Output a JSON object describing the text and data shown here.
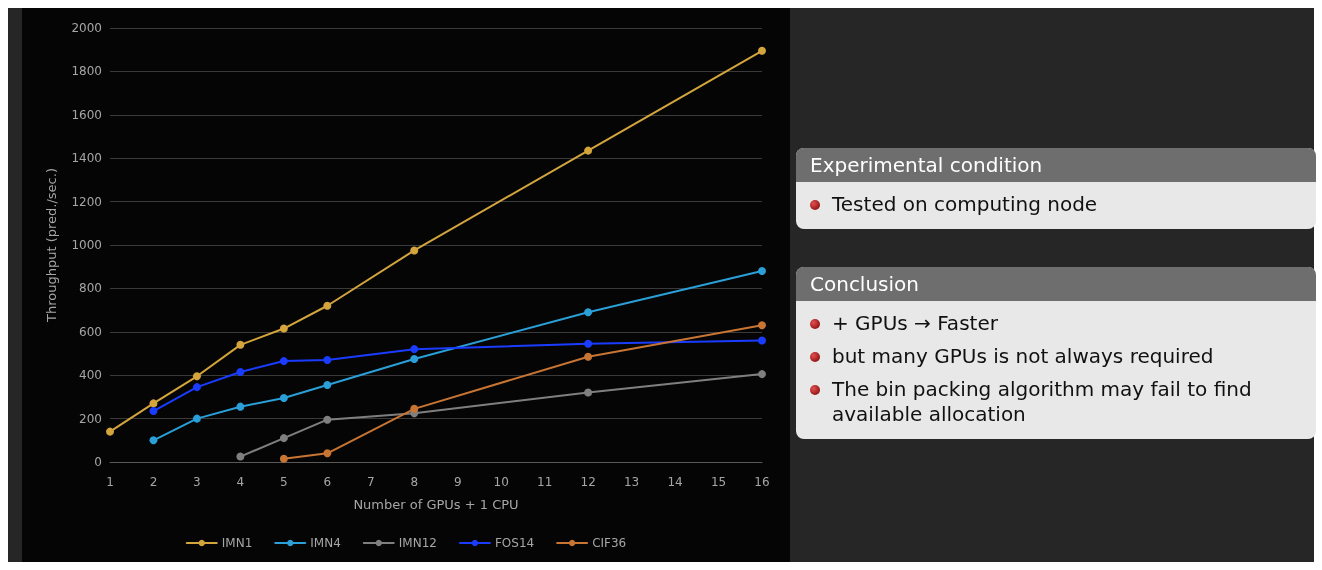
{
  "chart_data": [
    {
      "type": "line",
      "xlabel": "Number of GPUs + 1 CPU",
      "ylabel": "Throughput (pred./sec.)",
      "xlim": [
        1,
        16
      ],
      "xticks": [
        1,
        2,
        3,
        4,
        5,
        6,
        7,
        8,
        9,
        10,
        11,
        12,
        13,
        14,
        15,
        16
      ],
      "ylim": [
        0,
        2000
      ],
      "yticks": [
        0,
        200,
        400,
        600,
        800,
        1000,
        1200,
        1400,
        1600,
        1800,
        2000
      ],
      "grid": "y",
      "legend": "bottom",
      "marker": "circle",
      "line_style": "solid",
      "series": [
        {
          "name": "IMN1",
          "color": "#d4a53c",
          "x": [
            1,
            2,
            3,
            4,
            5,
            6,
            8,
            12,
            16
          ],
          "values": [
            140,
            270,
            395,
            540,
            615,
            720,
            975,
            1435,
            1895
          ]
        },
        {
          "name": "IMN4",
          "color": "#2a9fd8",
          "x": [
            2,
            3,
            4,
            5,
            6,
            8,
            12,
            16
          ],
          "values": [
            100,
            200,
            255,
            295,
            355,
            475,
            690,
            880
          ]
        },
        {
          "name": "IMN12",
          "color": "#7f7f7f",
          "x": [
            4,
            5,
            6,
            8,
            12,
            16
          ],
          "values": [
            25,
            110,
            195,
            225,
            320,
            405
          ]
        },
        {
          "name": "FOS14",
          "color": "#1a3cff",
          "x": [
            2,
            3,
            4,
            5,
            6,
            8,
            12,
            16
          ],
          "values": [
            235,
            345,
            415,
            465,
            470,
            520,
            545,
            560
          ]
        },
        {
          "name": "CIF36",
          "color": "#c87533",
          "x": [
            5,
            6,
            8,
            12,
            16
          ],
          "values": [
            15,
            40,
            245,
            485,
            630
          ]
        }
      ]
    },
    {
      "type": "other",
      "title": "Experimental condition",
      "annotations": [
        "Tested on computing node"
      ]
    },
    {
      "type": "other",
      "title": "Conclusion",
      "annotations": [
        "+ GPUs → Faster",
        "but many GPUs is not always required",
        "The bin packing algorithm may fail to find available allocation"
      ]
    }
  ]
}
